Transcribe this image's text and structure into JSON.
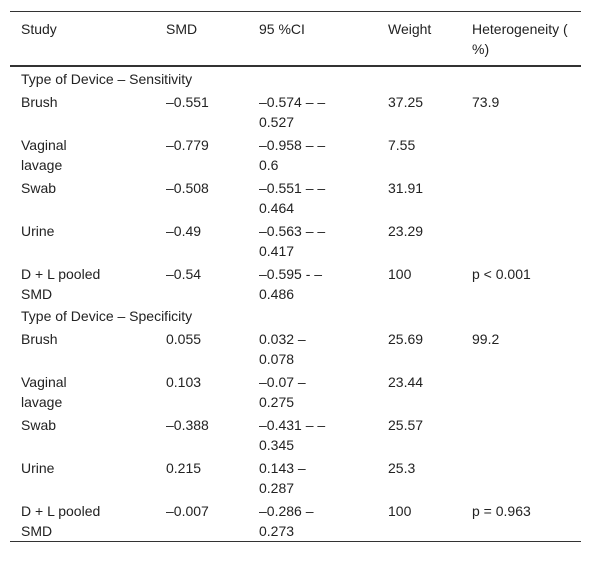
{
  "table": {
    "header": [
      "Study",
      "SMD",
      "95 %CI",
      "Weight",
      "Heterogeneity ( %)"
    ],
    "sections": [
      {
        "title": "Type of Device – Sensitivity",
        "rows": [
          [
            "Brush",
            "–0.551",
            "–0.574 – –0.527",
            "37.25",
            "73.9"
          ],
          [
            "Vaginal lavage",
            "–0.779",
            "–0.958 – –0.6",
            "7.55",
            ""
          ],
          [
            "Swab",
            "–0.508",
            "–0.551 – –0.464",
            "31.91",
            ""
          ],
          [
            "Urine",
            "–0.49",
            "–0.563 – –0.417",
            "23.29",
            ""
          ],
          [
            "D + L pooled SMD",
            "–0.54",
            "–0.595 - –0.486",
            "100",
            "p < 0.001"
          ]
        ]
      },
      {
        "title": "Type of Device – Specificity",
        "rows": [
          [
            "Brush",
            "0.055",
            "0.032 – 0.078",
            "25.69",
            "99.2"
          ],
          [
            "Vaginal lavage",
            "0.103",
            "–0.07 – 0.275",
            "23.44",
            ""
          ],
          [
            "Swab",
            "–0.388",
            "–0.431 – –0.345",
            "25.57",
            ""
          ],
          [
            "Urine",
            "0.215",
            "0.143 – 0.287",
            "25.3",
            ""
          ],
          [
            "D + L pooled SMD",
            "–0.007",
            "–0.286 – 0.273",
            "100",
            "p = 0.963"
          ]
        ]
      }
    ]
  }
}
